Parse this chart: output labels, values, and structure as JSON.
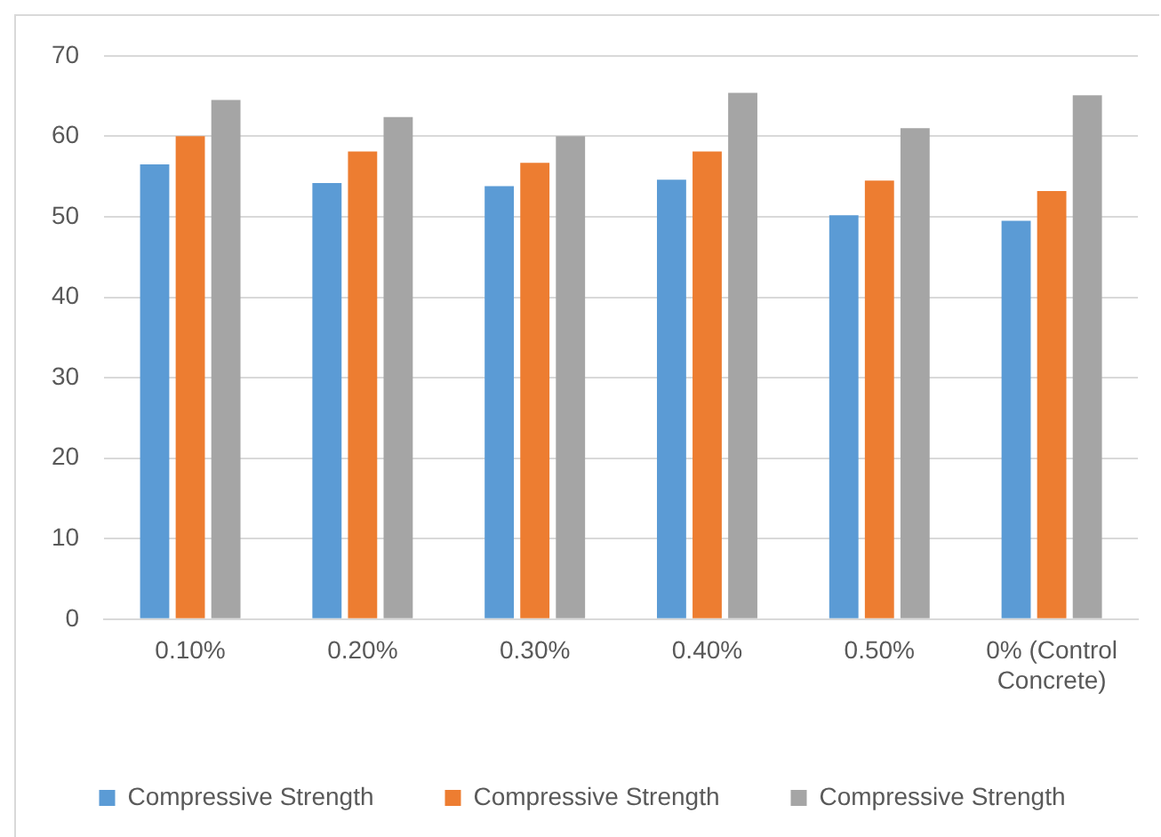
{
  "chart_data": {
    "type": "bar",
    "categories": [
      "0.10%",
      "0.20%",
      "0.30%",
      "0.40%",
      "0.50%",
      "0% (Control Concrete)"
    ],
    "series": [
      {
        "name": "Compressive Strength",
        "color": "#5b9bd5",
        "values": [
          56.5,
          54.2,
          53.8,
          54.6,
          50.2,
          49.5
        ]
      },
      {
        "name": "Compressive Strength",
        "color": "#ed7d31",
        "values": [
          60.0,
          58.1,
          56.7,
          58.1,
          54.5,
          53.2
        ]
      },
      {
        "name": "Compressive Strength",
        "color": "#a5a5a5",
        "values": [
          64.5,
          62.4,
          60.0,
          65.4,
          61.0,
          65.1
        ]
      }
    ],
    "ylim": [
      0,
      70
    ],
    "yticks": [
      0,
      10,
      20,
      30,
      40,
      50,
      60,
      70
    ],
    "grid": "y",
    "legend": "bottom"
  }
}
